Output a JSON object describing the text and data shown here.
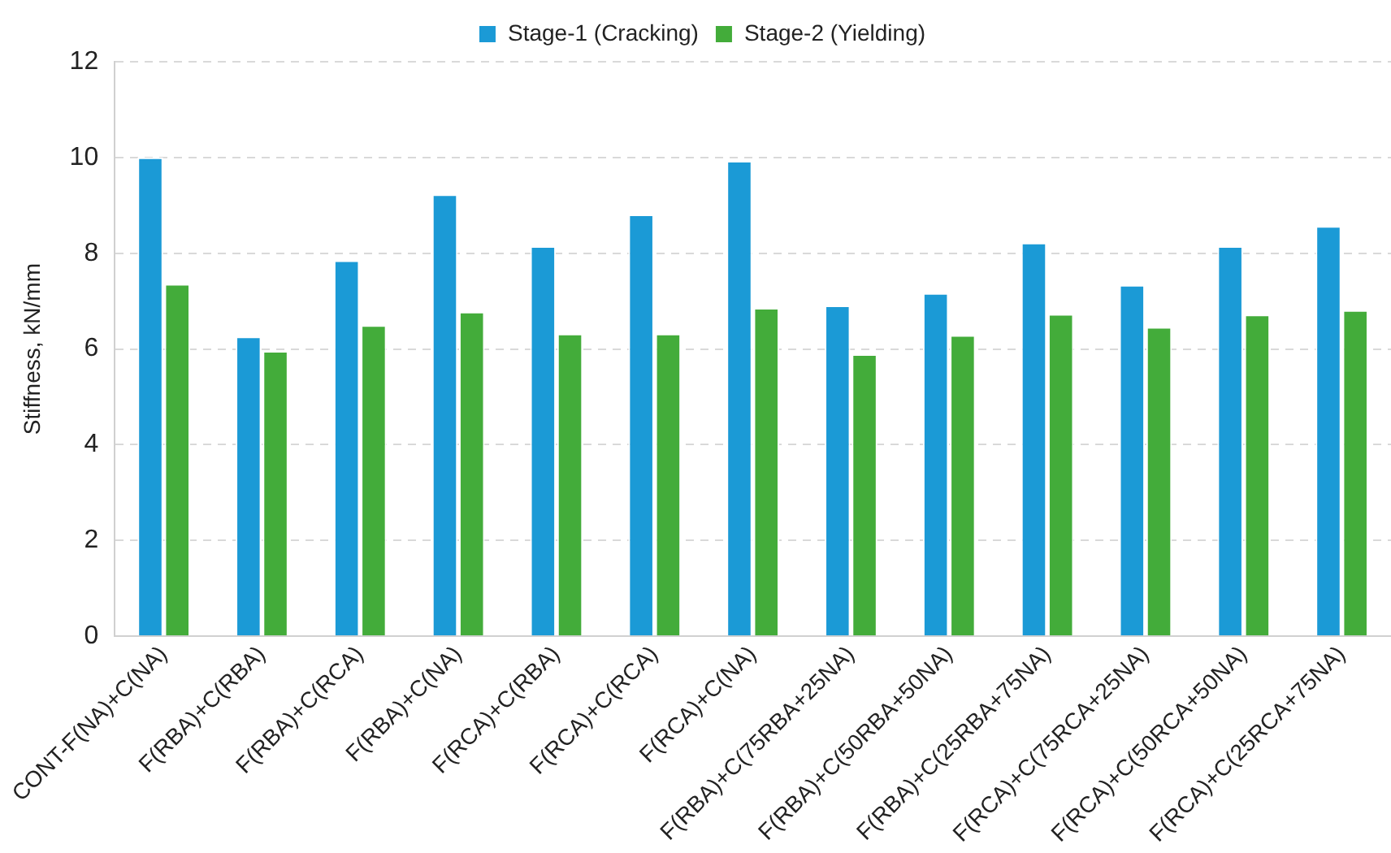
{
  "chart_data": {
    "type": "bar",
    "ylabel": "Stiffness, kN/mm",
    "categories": [
      "CONT-F(NA)+C(NA)",
      "F(RBA)+C(RBA)",
      "F(RBA)+C(RCA)",
      "F(RBA)+C(NA)",
      "F(RCA)+C(RBA)",
      "F(RCA)+C(RCA)",
      "F(RCA)+C(NA)",
      "F(RBA)+C(75RBA+25NA)",
      "F(RBA)+C(50RBA+50NA)",
      "F(RBA)+C(25RBA+75NA)",
      "F(RCA)+C(75RCA+25NA)",
      "F(RCA)+C(50RCA+50NA)",
      "F(RCA)+C(25RCA+75NA)"
    ],
    "series": [
      {
        "name": "Stage-1 (Cracking)",
        "color": "#1b9ad6",
        "values": [
          10.0,
          6.26,
          7.85,
          9.23,
          8.15,
          8.81,
          9.93,
          6.91,
          7.17,
          8.22,
          7.34,
          8.15,
          8.57
        ]
      },
      {
        "name": "Stage-2 (Yielding)",
        "color": "#43ac3a",
        "values": [
          7.36,
          5.96,
          6.5,
          6.78,
          6.32,
          6.32,
          6.86,
          5.89,
          6.29,
          6.73,
          6.46,
          6.72,
          6.81
        ]
      }
    ],
    "ylim": [
      0,
      12
    ],
    "yticks": [
      0,
      2,
      4,
      6,
      8,
      10,
      12
    ],
    "grid": "y",
    "legend": "top"
  }
}
